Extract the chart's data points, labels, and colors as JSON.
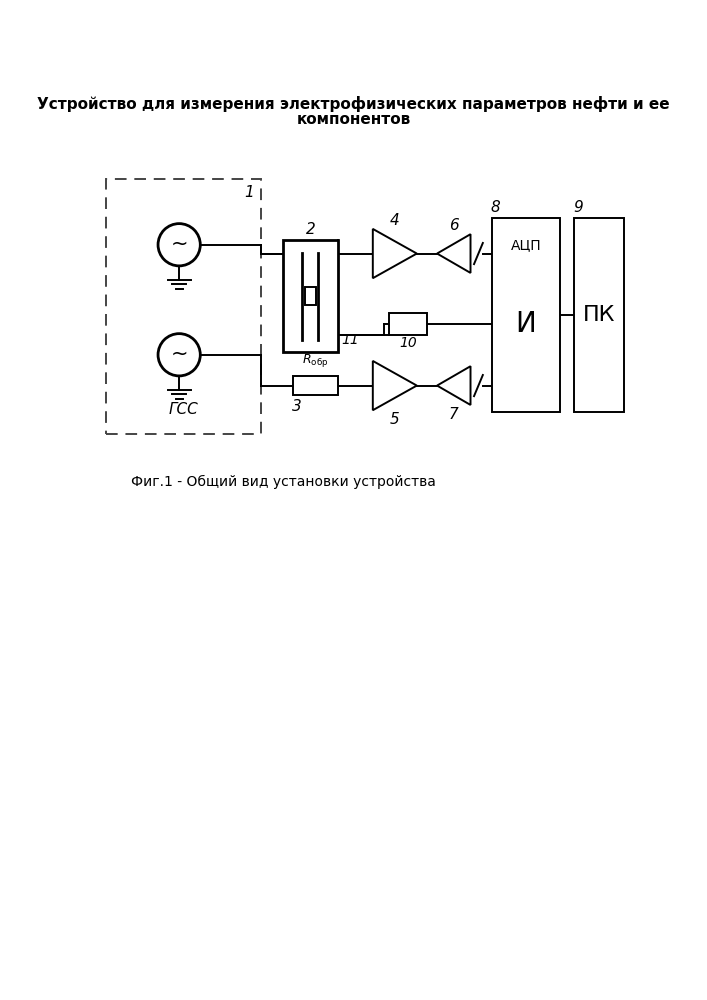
{
  "title_line1": "Устройство для измерения электрофизических параметров нефти и ее",
  "title_line2": "компонентов",
  "caption": "Фиг.1 - Общий вид установки устройства",
  "bg_color": "#ffffff",
  "line_color": "#000000",
  "lw": 1.4,
  "lw_thick": 2.0,
  "fig_w": 7.07,
  "fig_h": 10.0,
  "dpi": 100
}
